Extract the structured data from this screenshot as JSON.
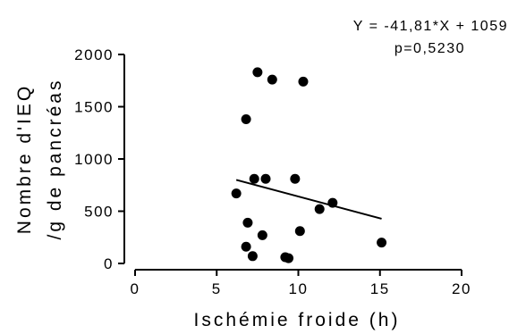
{
  "chart_data": {
    "type": "scatter",
    "xlabel": "Ischémie froide (h)",
    "ylabel": [
      "Nombre d'IEQ",
      "/g de pancréas"
    ],
    "xlim": [
      0,
      20
    ],
    "ylim": [
      0,
      2000
    ],
    "x_ticks": [
      0,
      5,
      10,
      15,
      20
    ],
    "y_ticks": [
      0,
      500,
      1000,
      1500,
      2000
    ],
    "x_tick_labels": [
      "0",
      "5",
      "10",
      "15",
      "20"
    ],
    "y_tick_labels": [
      "0",
      "500",
      "1000",
      "1500",
      "2000"
    ],
    "grid": false,
    "points": [
      {
        "x": 6.2,
        "y": 670
      },
      {
        "x": 6.8,
        "y": 1380
      },
      {
        "x": 6.9,
        "y": 390
      },
      {
        "x": 6.8,
        "y": 160
      },
      {
        "x": 7.2,
        "y": 70
      },
      {
        "x": 7.3,
        "y": 810
      },
      {
        "x": 7.5,
        "y": 1830
      },
      {
        "x": 7.8,
        "y": 270
      },
      {
        "x": 8.0,
        "y": 810
      },
      {
        "x": 8.4,
        "y": 1760
      },
      {
        "x": 9.2,
        "y": 60
      },
      {
        "x": 9.4,
        "y": 50
      },
      {
        "x": 9.8,
        "y": 810
      },
      {
        "x": 10.1,
        "y": 310
      },
      {
        "x": 10.3,
        "y": 1740
      },
      {
        "x": 11.3,
        "y": 520
      },
      {
        "x": 12.1,
        "y": 580
      },
      {
        "x": 15.1,
        "y": 200
      }
    ],
    "fit_line": {
      "slope": -41.81,
      "intercept": 1059,
      "x_range": [
        6.2,
        15.1
      ]
    },
    "annotations": [
      "Y = -41,81*X + 1059",
      "p=0,5230"
    ]
  }
}
